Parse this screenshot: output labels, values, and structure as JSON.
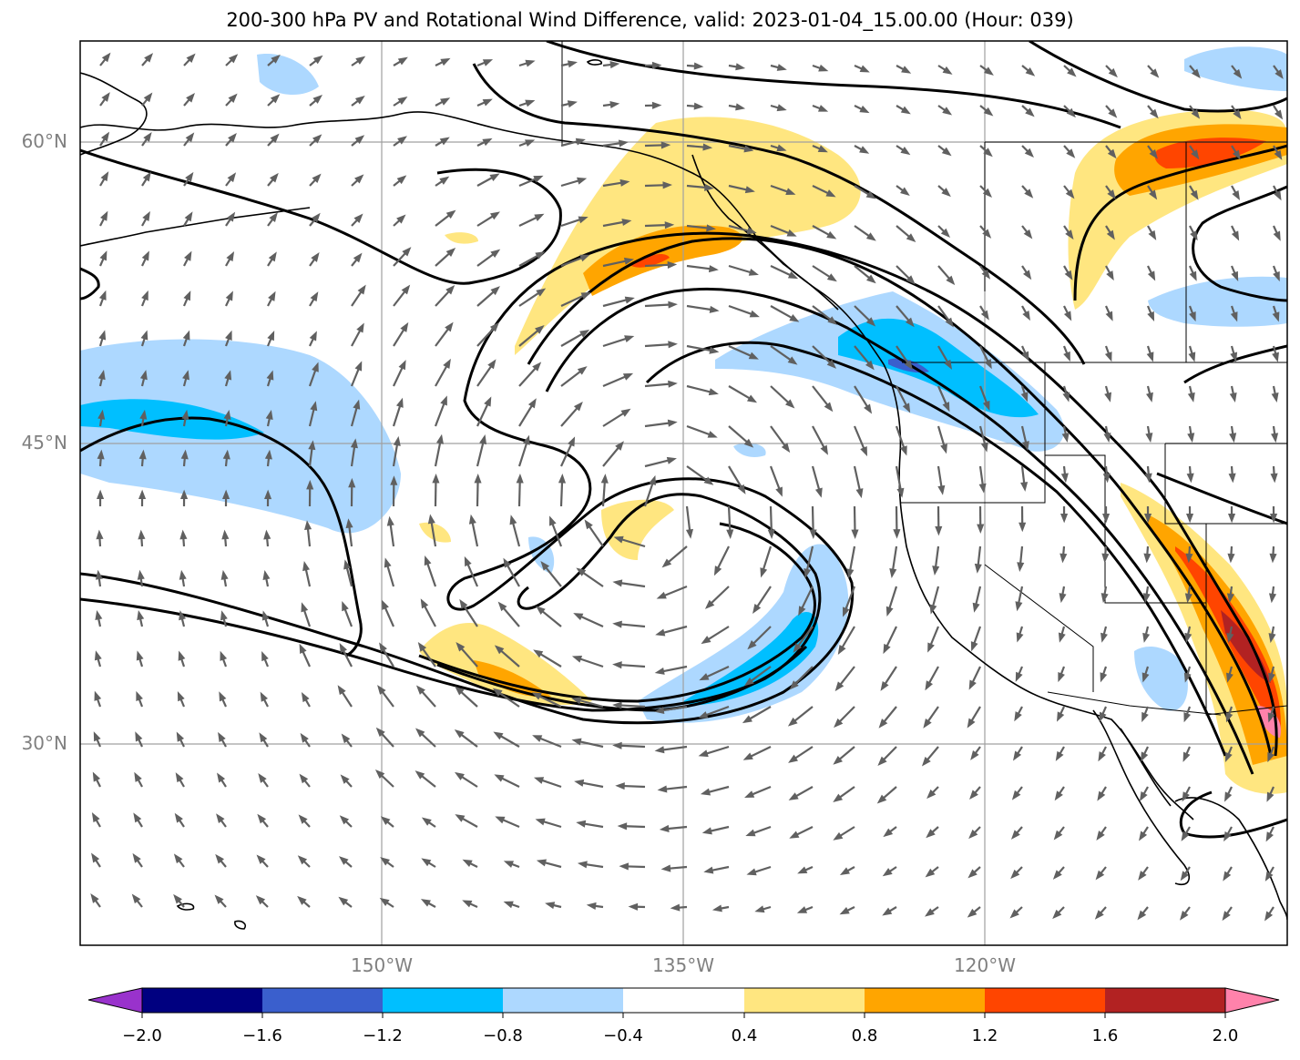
{
  "title": "200-300 hPa PV and Rotational Wind Difference, valid: 2023-01-04_15.00.00 (Hour: 039)",
  "lat_labels": [
    "60°N",
    "45°N",
    "30°N"
  ],
  "lon_labels": [
    "150°W",
    "135°W",
    "120°W"
  ],
  "colorbar": {
    "ticks": [
      "−2.0",
      "−1.6",
      "−1.2",
      "−0.8",
      "−0.4",
      "0.4",
      "0.8",
      "1.2",
      "1.6",
      "2.0"
    ],
    "colors": [
      "#000080",
      "#3a5fcd",
      "#00bfff",
      "#add8ff",
      "#ffffff",
      "#ffe680",
      "#ffa500",
      "#ff4500",
      "#b22222"
    ],
    "under_color": "#9932cc",
    "over_color": "#ff82ab"
  },
  "styles": {
    "positive_fill": "#ffe680",
    "positive_mid": "#ffa500",
    "positive_high": "#ff4500",
    "positive_max": "#b22222",
    "negative_light": "#add8ff",
    "negative_mid": "#00bfff",
    "negative_dark": "#3a5fcd",
    "arrow_color": "#606060",
    "contour_color": "#000000",
    "grid_color": "#a0a0a0"
  }
}
